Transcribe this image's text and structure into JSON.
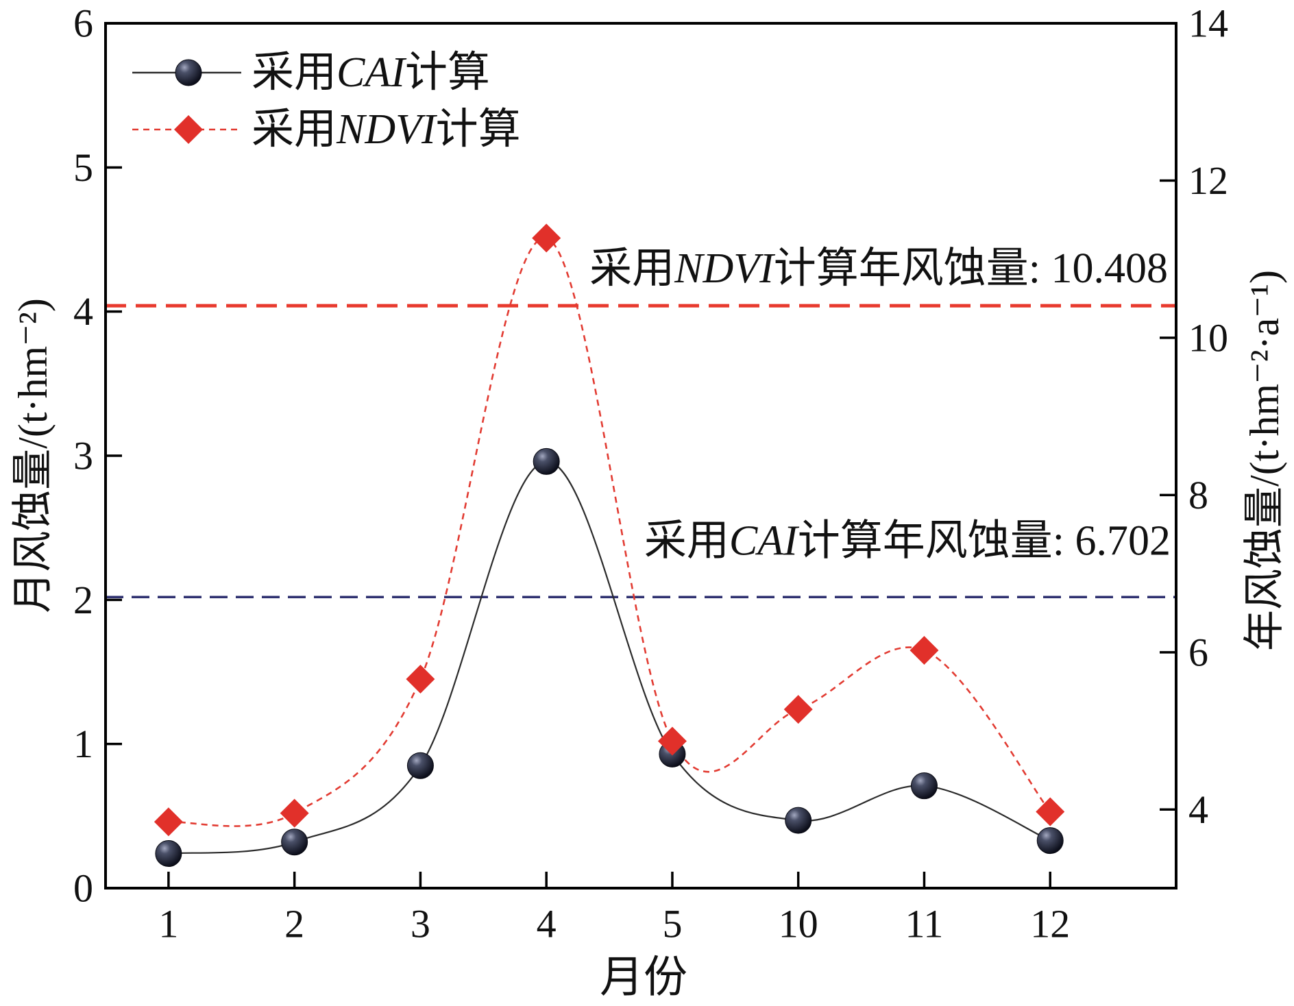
{
  "chart_data": {
    "type": "line",
    "title": "",
    "xlabel": "月份",
    "categories": [
      "1",
      "2",
      "3",
      "4",
      "5",
      "10",
      "11",
      "12"
    ],
    "y_axis": {
      "label": "月风蚀量/(t·hm⁻²)",
      "range": [
        0,
        6
      ],
      "ticks": [
        0,
        1,
        2,
        3,
        4,
        5,
        6
      ]
    },
    "y2_axis": {
      "label": "年风蚀量/(t·hm⁻²·a⁻¹)",
      "range": [
        3,
        14
      ],
      "ticks": [
        4,
        6,
        8,
        10,
        12,
        14
      ]
    },
    "series": [
      {
        "name": "采用CAI计算",
        "axis": "left",
        "values": [
          0.24,
          0.32,
          0.85,
          2.96,
          0.93,
          0.47,
          0.71,
          0.33
        ],
        "line_color": "#2b2b2b",
        "marker_color": "#1c1f30",
        "line_style": "solid",
        "marker": "sphere"
      },
      {
        "name": "采用NDVI计算",
        "axis": "left",
        "values": [
          0.46,
          0.52,
          1.45,
          4.51,
          1.02,
          1.24,
          1.65,
          0.53
        ],
        "line_color": "#e23b32",
        "marker_color": "#e1302a",
        "line_style": "dashed",
        "marker": "diamond"
      }
    ],
    "reference_lines": [
      {
        "label": "采用NDVI计算年风蚀量: 10.408",
        "value": 10.408,
        "axis": "right",
        "color": "#e8392d"
      },
      {
        "label": "采用CAI计算年风蚀量: 6.702",
        "value": 6.702,
        "axis": "right",
        "color": "#2f3170"
      }
    ],
    "legend": "top-left",
    "grid": false
  }
}
